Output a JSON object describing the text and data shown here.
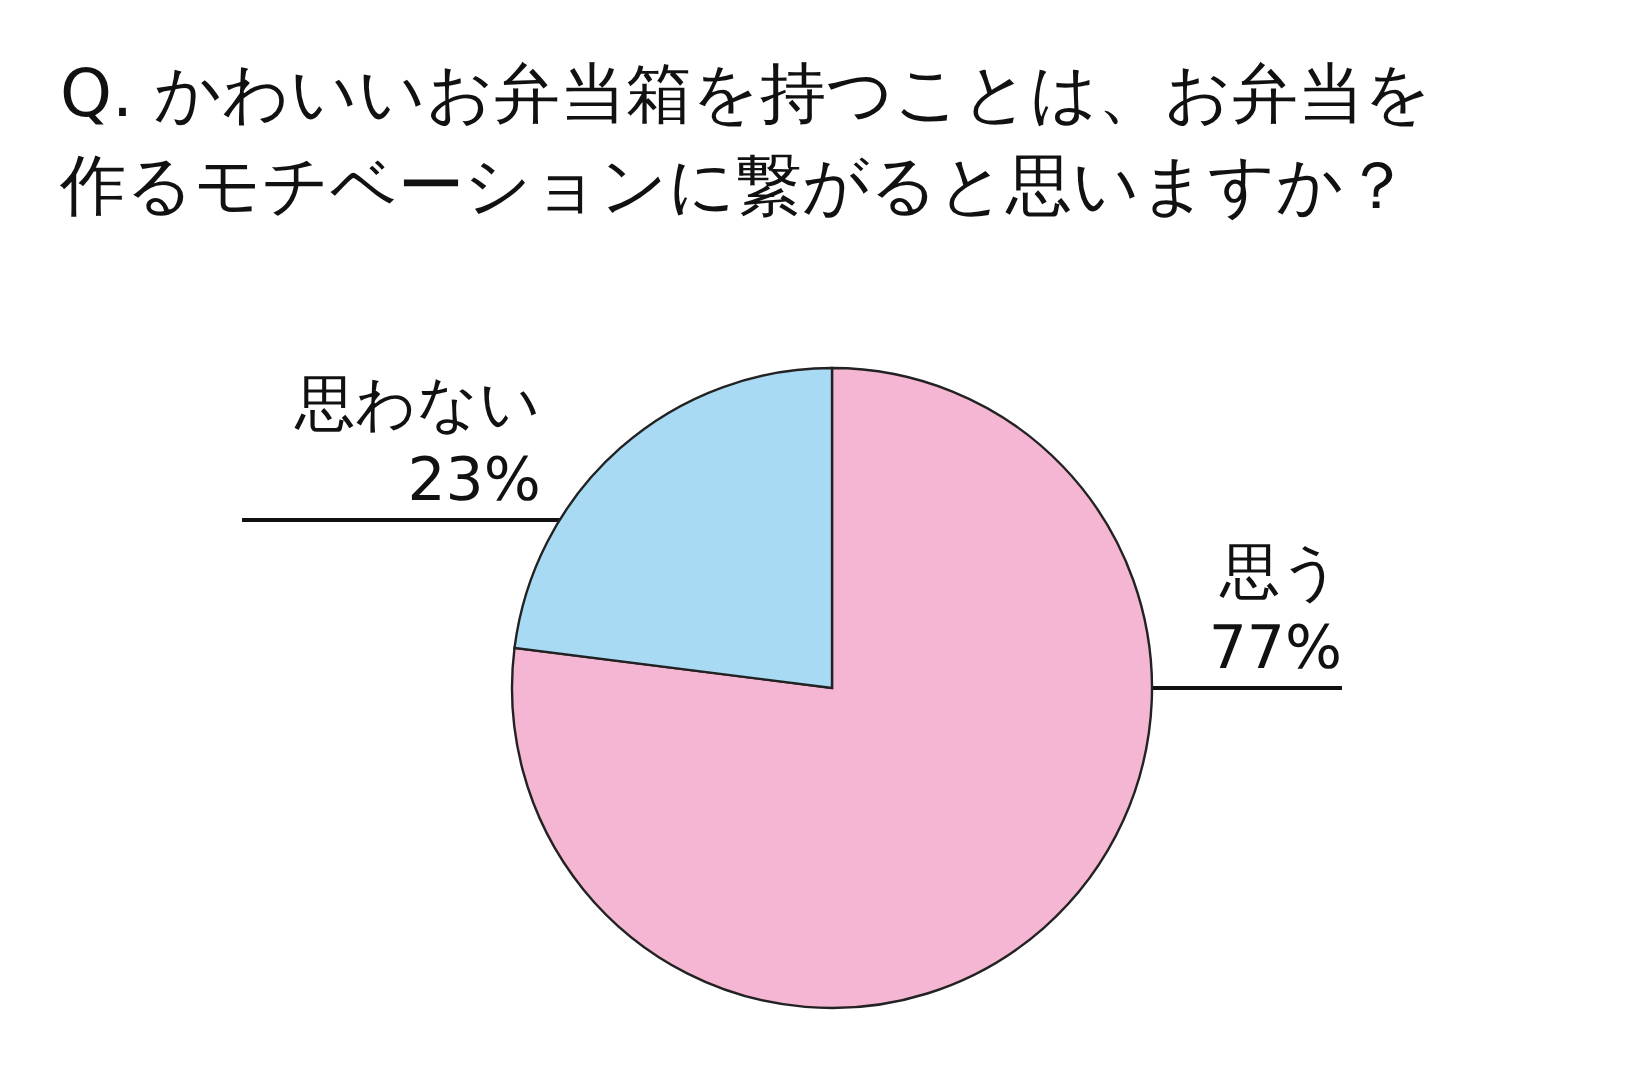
{
  "chart_data": {
    "type": "pie",
    "title": "Q. かわいいお弁当箱を持つことは、お弁当を作るモチベーションに繋がると思いますか？",
    "categories": [
      "思う",
      "思わない"
    ],
    "values": [
      77,
      23
    ],
    "value_labels": [
      "77%",
      "23%"
    ],
    "colors": [
      "#f4b6d2",
      "#a9daf4"
    ],
    "legend": false
  }
}
